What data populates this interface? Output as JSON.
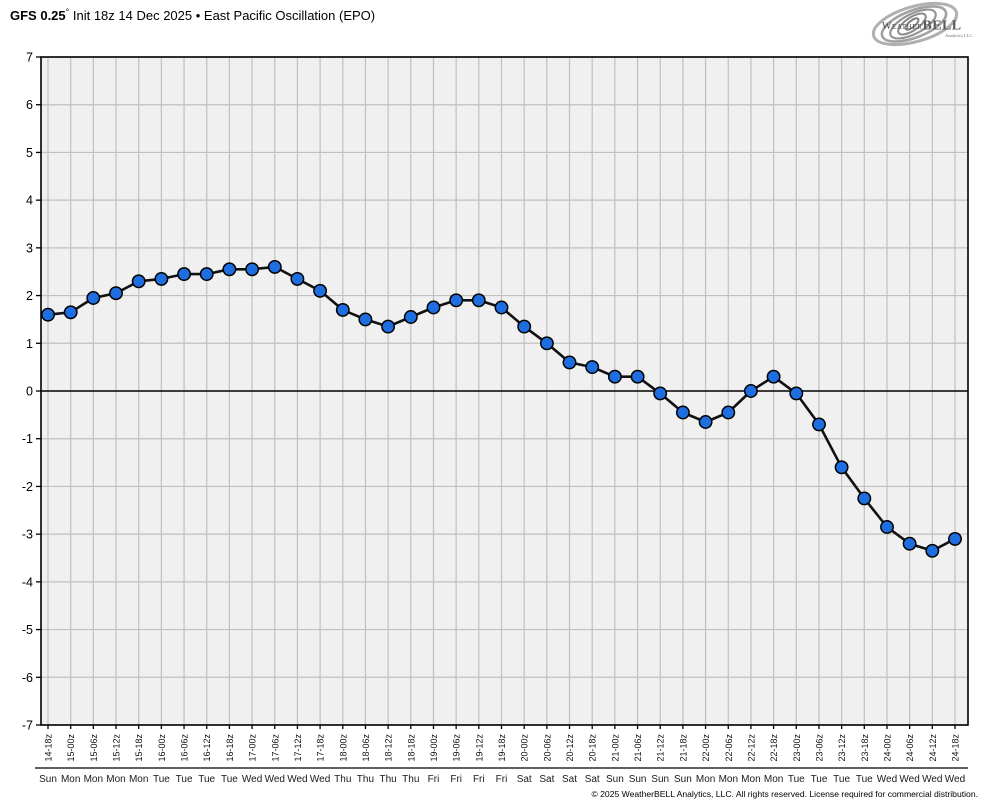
{
  "header": {
    "title_bold": "GFS 0.25",
    "title_degree": "°",
    "title_rest": "Init 18z 14 Dec 2025 • East Pacific Oscillation (EPO)",
    "logo": {
      "name_left": "Weather",
      "name_right": "BELL",
      "subtext": "Analytics LLC"
    }
  },
  "footer": {
    "copyright": "© 2025 WeatherBELL Analytics, LLC. All rights reserved. License required for commercial distribution."
  },
  "chart_data": {
    "type": "line",
    "title": "GFS 0.25° Init 18z 14 Dec 2025 • East Pacific Oscillation (EPO)",
    "x_labels": [
      "14-18z",
      "15-00z",
      "15-06z",
      "15-12z",
      "15-18z",
      "16-00z",
      "16-06z",
      "16-12z",
      "16-18z",
      "17-00z",
      "17-06z",
      "17-12z",
      "17-18z",
      "18-00z",
      "18-06z",
      "18-12z",
      "18-18z",
      "19-00z",
      "19-06z",
      "19-12z",
      "19-18z",
      "20-00z",
      "20-06z",
      "20-12z",
      "20-18z",
      "21-00z",
      "21-06z",
      "21-12z",
      "21-18z",
      "22-00z",
      "22-06z",
      "22-12z",
      "22-18z",
      "23-00z",
      "23-06z",
      "23-12z",
      "23-18z",
      "24-00z",
      "24-06z",
      "24-12z",
      "24-18z"
    ],
    "day_labels": [
      "Sun",
      "Mon",
      "Mon",
      "Mon",
      "Mon",
      "Tue",
      "Tue",
      "Tue",
      "Tue",
      "Wed",
      "Wed",
      "Wed",
      "Wed",
      "Thu",
      "Thu",
      "Thu",
      "Thu",
      "Fri",
      "Fri",
      "Fri",
      "Fri",
      "Sat",
      "Sat",
      "Sat",
      "Sat",
      "Sun",
      "Sun",
      "Sun",
      "Sun",
      "Mon",
      "Mon",
      "Mon",
      "Mon",
      "Tue",
      "Tue",
      "Tue",
      "Tue",
      "Wed",
      "Wed",
      "Wed",
      "Wed"
    ],
    "series": [
      {
        "name": "EPO",
        "values": [
          1.6,
          1.65,
          1.95,
          2.05,
          2.3,
          2.35,
          2.45,
          2.45,
          2.55,
          2.55,
          2.6,
          2.35,
          2.1,
          1.7,
          1.5,
          1.35,
          1.55,
          1.75,
          1.9,
          1.9,
          1.75,
          1.35,
          1.0,
          0.6,
          0.5,
          0.3,
          0.3,
          -0.05,
          -0.45,
          -0.65,
          -0.45,
          0.0,
          0.3,
          -0.05,
          -0.7,
          -1.6,
          -2.25,
          -2.85,
          -3.2,
          -3.35,
          -3.1
        ]
      }
    ],
    "ylim": [
      -7,
      7
    ],
    "ytick_step": 1,
    "grid": true,
    "zero_line": true,
    "legend": "none",
    "colors": {
      "marker_fill": "#1e6ee0",
      "line": "#111111",
      "grid": "#c0c0c0",
      "plot_bg": "#f0f0f0",
      "axis": "#000000",
      "logo_gray": "#9a9a9a"
    }
  }
}
